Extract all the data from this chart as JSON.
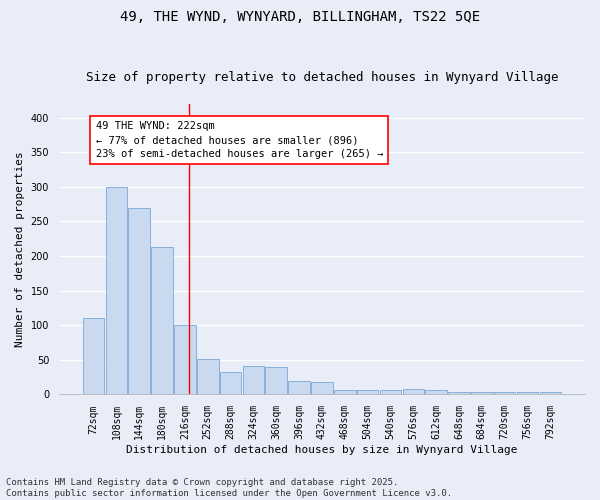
{
  "title_line1": "49, THE WYND, WYNYARD, BILLINGHAM, TS22 5QE",
  "title_line2": "Size of property relative to detached houses in Wynyard Village",
  "xlabel": "Distribution of detached houses by size in Wynyard Village",
  "ylabel": "Number of detached properties",
  "bar_color": "#c9d9f0",
  "bar_edge_color": "#7aa8d8",
  "bins": [
    72,
    108,
    144,
    180,
    216,
    252,
    288,
    324,
    360,
    396,
    432,
    468,
    504,
    540,
    576,
    612,
    648,
    684,
    720,
    756,
    792
  ],
  "counts": [
    110,
    299,
    270,
    213,
    101,
    51,
    32,
    41,
    40,
    19,
    18,
    6,
    6,
    6,
    8,
    7,
    4,
    4,
    3,
    4,
    3
  ],
  "red_line_x": 222,
  "annotation_text": "49 THE WYND: 222sqm\n← 77% of detached houses are smaller (896)\n23% of semi-detached houses are larger (265) →",
  "ylim": [
    0,
    420
  ],
  "yticks": [
    0,
    50,
    100,
    150,
    200,
    250,
    300,
    350,
    400
  ],
  "fig_bg_color": "#e8edf8",
  "ax_bg_color": "#e8edf8",
  "grid_color": "#ffffff",
  "footer_line1": "Contains HM Land Registry data © Crown copyright and database right 2025.",
  "footer_line2": "Contains public sector information licensed under the Open Government Licence v3.0.",
  "title_fontsize": 10,
  "subtitle_fontsize": 9,
  "axis_label_fontsize": 8,
  "tick_fontsize": 7,
  "annotation_fontsize": 7.5,
  "footer_fontsize": 6.5
}
